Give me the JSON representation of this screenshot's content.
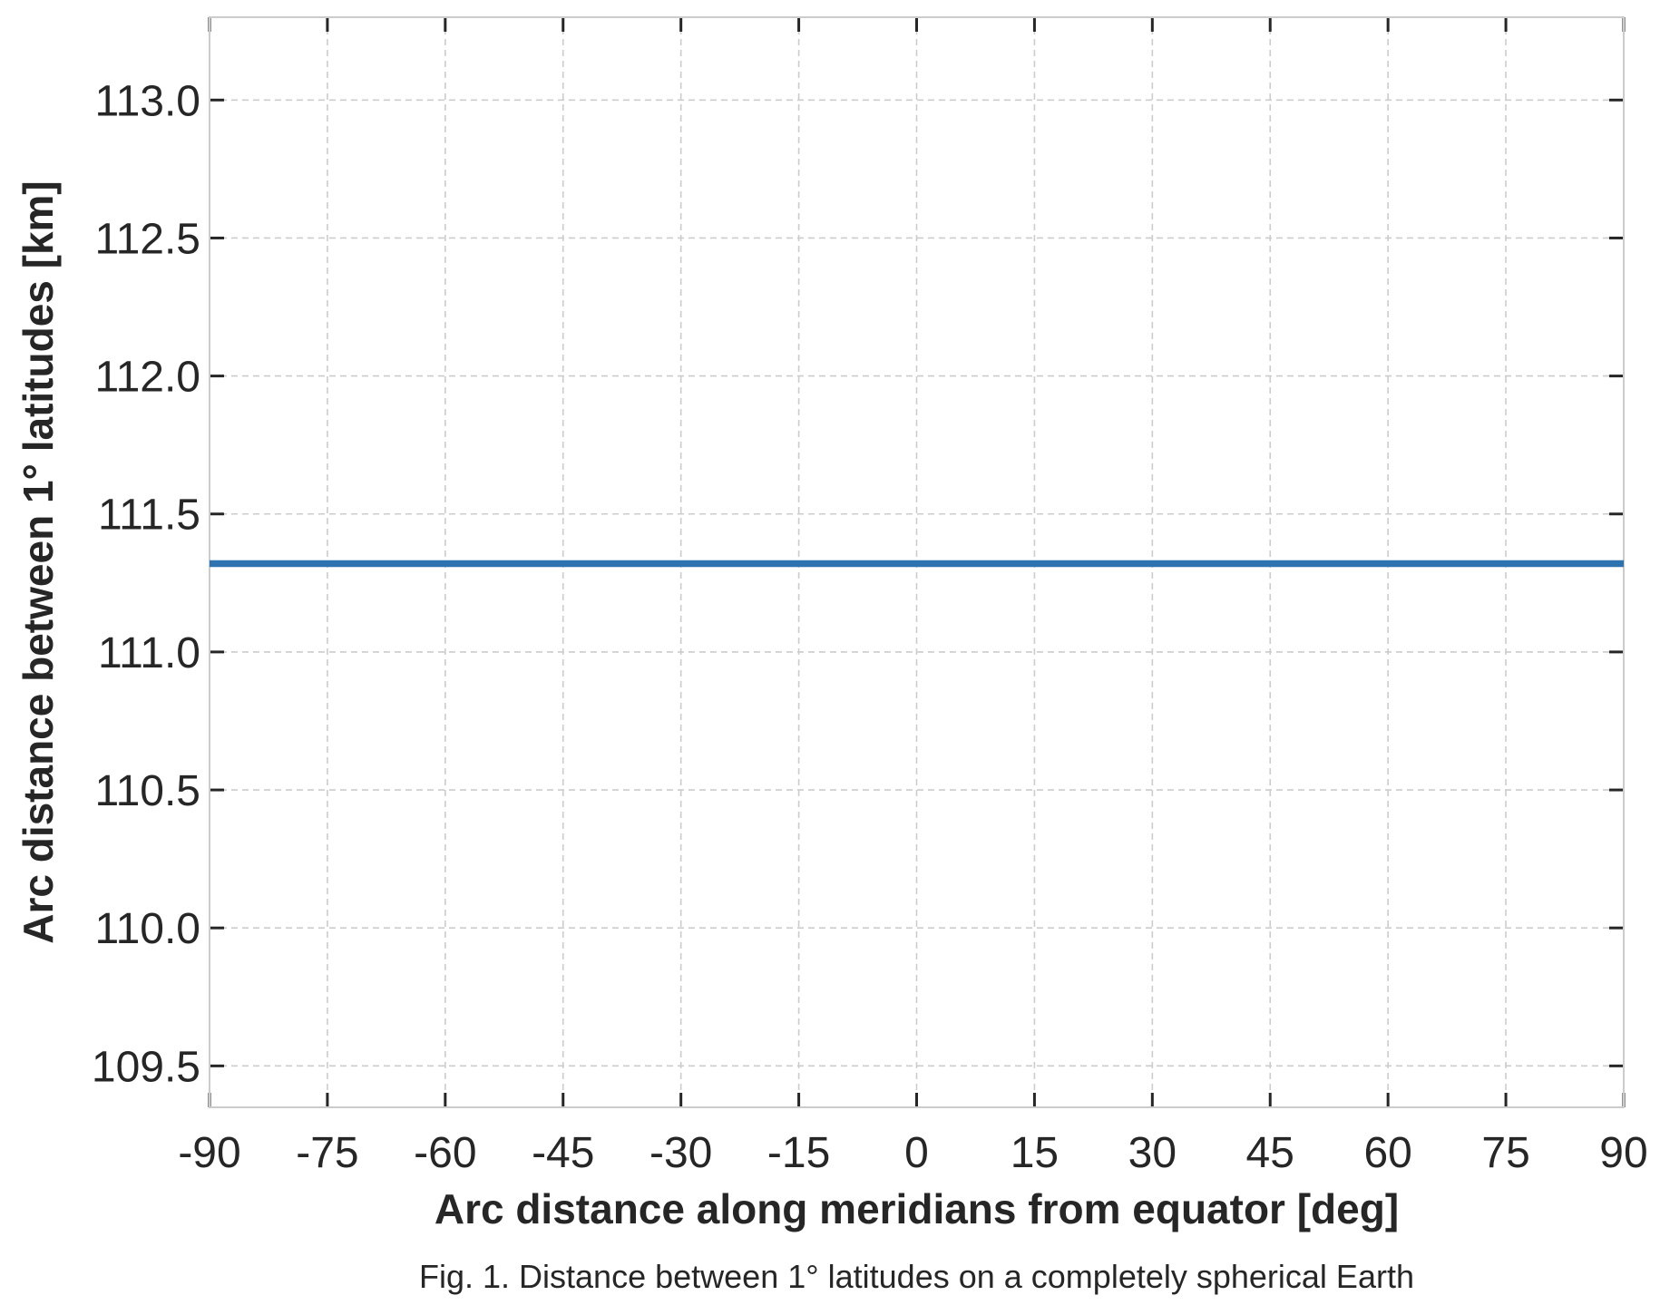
{
  "chart_data": {
    "type": "line",
    "xlabel": "Arc distance along meridians from equator [deg]",
    "ylabel": "Arc distance between 1$^\\circ$ latitudes [km]",
    "ylabel_display": "Arc distance between 1° latitudes [km]",
    "caption": "Fig. 1. Distance between 1° latitudes on a completely spherical Earth",
    "xlim": [
      -90,
      90
    ],
    "ylim": [
      109.35,
      113.3
    ],
    "x_ticks": [
      -90,
      -75,
      -60,
      -45,
      -30,
      -15,
      0,
      15,
      30,
      45,
      60,
      75,
      90
    ],
    "x_tick_labels": [
      "-90",
      "-75",
      "-60",
      "-45",
      "-30",
      "-15",
      "0",
      "15",
      "30",
      "45",
      "60",
      "75",
      "90"
    ],
    "y_ticks": [
      109.5,
      110.0,
      110.5,
      111.0,
      111.5,
      112.0,
      112.5,
      113.0
    ],
    "y_tick_labels": [
      "109.5",
      "110.0",
      "110.5",
      "111.0",
      "111.5",
      "112.0",
      "112.5",
      "113.0"
    ],
    "grid": true,
    "series": [
      {
        "x": [
          -90,
          -75,
          -60,
          -45,
          -30,
          -15,
          0,
          15,
          30,
          45,
          60,
          75,
          90
        ],
        "y": [
          111.32,
          111.32,
          111.32,
          111.32,
          111.32,
          111.32,
          111.32,
          111.32,
          111.32,
          111.32,
          111.32,
          111.32,
          111.32
        ],
        "color": "#2c73b0"
      }
    ]
  }
}
